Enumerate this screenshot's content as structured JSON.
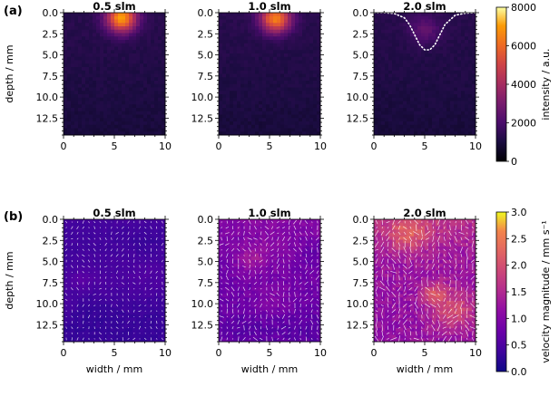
{
  "figure": {
    "row_a_tag": "(a)",
    "row_b_tag": "(b)"
  },
  "chart_data": [
    {
      "type": "heatmap",
      "row": "a",
      "title": "0.5 slm",
      "xlabel": "",
      "ylabel": "depth / mm",
      "xlim": [
        0,
        10
      ],
      "ylim": [
        14.5,
        0
      ],
      "xticks": [
        "0",
        "5",
        "10"
      ],
      "yticks": [
        "0.0",
        "2.5",
        "5.0",
        "7.5",
        "10.0",
        "12.5"
      ],
      "colormap": "inferno",
      "hotspot": {
        "x": 5.7,
        "y": 0.6,
        "peak": 7000
      }
    },
    {
      "type": "heatmap",
      "row": "a",
      "title": "1.0 slm",
      "xlabel": "",
      "ylabel": "",
      "xlim": [
        0,
        10
      ],
      "ylim": [
        14.5,
        0
      ],
      "xticks": [
        "0",
        "5",
        "10"
      ],
      "yticks": [
        "0.0",
        "2.5",
        "5.0",
        "7.5",
        "10.0",
        "12.5"
      ],
      "colormap": "inferno",
      "hotspot": {
        "x": 5.6,
        "y": 0.7,
        "peak": 6500
      }
    },
    {
      "type": "heatmap",
      "row": "a",
      "title": "2.0 slm",
      "xlabel": "",
      "ylabel": "",
      "xlim": [
        0,
        10
      ],
      "ylim": [
        14.5,
        0
      ],
      "xticks": [
        "0",
        "5",
        "10"
      ],
      "yticks": [
        "0.0",
        "2.5",
        "5.0",
        "7.5",
        "10.0",
        "12.5"
      ],
      "colormap": "inferno",
      "hotspot": {
        "x": 5.0,
        "y": 2.0,
        "peak": 2500
      },
      "dotted_outline": {
        "x": [
          0,
          1,
          2,
          3,
          3.5,
          4,
          4.5,
          5,
          5.5,
          6,
          6.5,
          7,
          8,
          9,
          10
        ],
        "y": [
          0,
          0,
          0.1,
          0.6,
          1.4,
          2.6,
          3.8,
          4.4,
          4.4,
          3.8,
          2.6,
          1.4,
          0.3,
          0.05,
          0
        ]
      }
    },
    {
      "type": "heatmap",
      "row": "b",
      "title": "0.5 slm",
      "xlabel": "width / mm",
      "ylabel": "depth / mm",
      "xlim": [
        0,
        10
      ],
      "ylim": [
        14.5,
        0
      ],
      "xticks": [
        "0",
        "5",
        "10"
      ],
      "yticks": [
        "0.0",
        "2.5",
        "5.0",
        "7.5",
        "10.0",
        "12.5"
      ],
      "colormap": "plasma",
      "quiver": true,
      "mean_velocity": 0.4
    },
    {
      "type": "heatmap",
      "row": "b",
      "title": "1.0 slm",
      "xlabel": "width / mm",
      "ylabel": "",
      "xlim": [
        0,
        10
      ],
      "ylim": [
        14.5,
        0
      ],
      "xticks": [
        "0",
        "5",
        "10"
      ],
      "yticks": [
        "0.0",
        "2.5",
        "5.0",
        "7.5",
        "10.0",
        "12.5"
      ],
      "colormap": "plasma",
      "quiver": true,
      "mean_velocity": 1.0
    },
    {
      "type": "heatmap",
      "row": "b",
      "title": "2.0 slm",
      "xlabel": "width / mm",
      "ylabel": "",
      "xlim": [
        0,
        10
      ],
      "ylim": [
        14.5,
        0
      ],
      "xticks": [
        "0",
        "5",
        "10"
      ],
      "yticks": [
        "0.0",
        "2.5",
        "5.0",
        "7.5",
        "10.0",
        "12.5"
      ],
      "colormap": "plasma",
      "quiver": true,
      "mean_velocity": 1.5
    }
  ],
  "colorbars": [
    {
      "row": "a",
      "label": "intensity / a.u.",
      "colormap": "inferno",
      "range": [
        0,
        8000
      ],
      "ticks": [
        "0",
        "2000",
        "4000",
        "6000",
        "8000"
      ]
    },
    {
      "row": "b",
      "label": "velocity magnitude / mm s⁻¹",
      "colormap": "plasma",
      "range": [
        0,
        3.0
      ],
      "ticks": [
        "0.0",
        "0.5",
        "1.0",
        "1.5",
        "2.0",
        "2.5",
        "3.0"
      ]
    }
  ]
}
